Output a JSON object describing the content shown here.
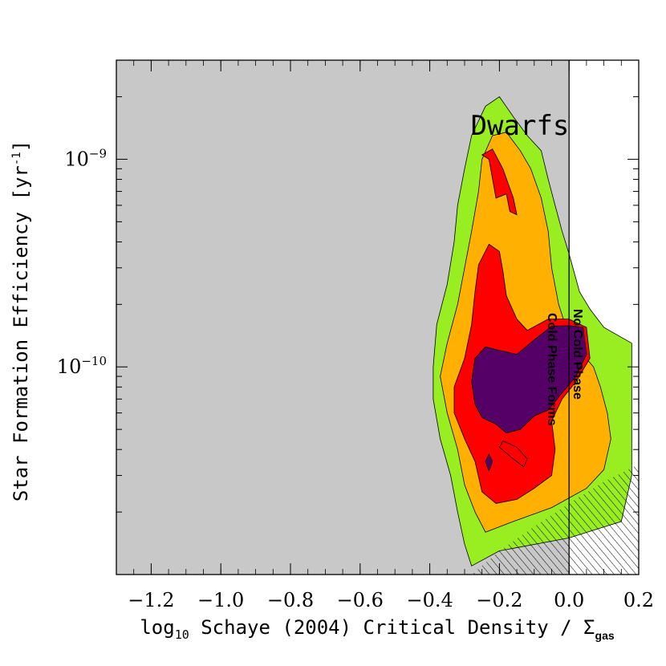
{
  "chart_data": {
    "type": "contour",
    "xlabel_parts": {
      "pre": "log",
      "pre_sub": "10",
      "main": " Schaye (2004) Critical Density / Σ",
      "post_sub": "gas"
    },
    "ylabel_parts": {
      "main": "Star Formation Efficiency [yr",
      "sup": "-1",
      "post": "]"
    },
    "xlim": [
      -1.3,
      0.2
    ],
    "ylim": [
      1e-11,
      3e-09
    ],
    "y_scale": "log",
    "x_ticks": [
      {
        "value": -1.2,
        "label": "−1.2"
      },
      {
        "value": -1.0,
        "label": "−1.0"
      },
      {
        "value": -0.8,
        "label": "−0.8"
      },
      {
        "value": -0.6,
        "label": "−0.6"
      },
      {
        "value": -0.4,
        "label": "−0.4"
      },
      {
        "value": -0.2,
        "label": "−0.2"
      },
      {
        "value": 0.0,
        "label": "0.0"
      },
      {
        "value": 0.2,
        "label": "0.2"
      }
    ],
    "y_ticks": [
      {
        "value": 1e-09,
        "base": "10",
        "exp": "−9"
      },
      {
        "value": 1e-10,
        "base": "10",
        "exp": "−10"
      }
    ],
    "threshold_x": 0.0,
    "shaded_region": {
      "x_max": 0.0,
      "color": "#c8c8c8"
    },
    "annotations": {
      "dwarfs": "Dwarfs",
      "no_cold": "No Cold Phase",
      "cold_forms": "Cold Phase Forms"
    },
    "contour_levels": [
      {
        "name": "level-1",
        "color": "#99ee22",
        "polygon": [
          [
            -0.28,
            1.1e-11
          ],
          [
            -0.2,
            1.3e-11
          ],
          [
            0.0,
            1.5e-11
          ],
          [
            0.15,
            1.8e-11
          ],
          [
            0.18,
            3e-11
          ],
          [
            0.18,
            1.3e-10
          ],
          [
            0.1,
            1.55e-10
          ],
          [
            0.06,
            1.9e-10
          ],
          [
            0.03,
            2.3e-10
          ],
          [
            0.0,
            3.5e-10
          ],
          [
            -0.02,
            4.5e-10
          ],
          [
            -0.04,
            6e-10
          ],
          [
            -0.06,
            8e-10
          ],
          [
            -0.08,
            1.1e-09
          ],
          [
            -0.12,
            1.3e-09
          ],
          [
            -0.16,
            1.6e-09
          ],
          [
            -0.2,
            2e-09
          ],
          [
            -0.24,
            1.8e-09
          ],
          [
            -0.28,
            1.3e-09
          ],
          [
            -0.3,
            9e-10
          ],
          [
            -0.32,
            6e-10
          ],
          [
            -0.33,
            4e-10
          ],
          [
            -0.35,
            2.5e-10
          ],
          [
            -0.38,
            1.6e-10
          ],
          [
            -0.39,
            1e-10
          ],
          [
            -0.39,
            7e-11
          ],
          [
            -0.37,
            4.5e-11
          ],
          [
            -0.34,
            3e-11
          ],
          [
            -0.32,
            2e-11
          ],
          [
            -0.3,
            1.4e-11
          ]
        ]
      },
      {
        "name": "level-2",
        "color": "#ffb000",
        "polygon": [
          [
            -0.24,
            1.6e-11
          ],
          [
            -0.16,
            1.8e-11
          ],
          [
            -0.05,
            2.1e-11
          ],
          [
            0.05,
            2.6e-11
          ],
          [
            0.1,
            3.2e-11
          ],
          [
            0.12,
            4.5e-11
          ],
          [
            0.11,
            6e-11
          ],
          [
            0.09,
            8e-11
          ],
          [
            0.07,
            1e-10
          ],
          [
            0.03,
            1.2e-10
          ],
          [
            0.0,
            1.4e-10
          ],
          [
            -0.03,
            2e-10
          ],
          [
            -0.05,
            3e-10
          ],
          [
            -0.06,
            4.5e-10
          ],
          [
            -0.08,
            6.5e-10
          ],
          [
            -0.11,
            9e-10
          ],
          [
            -0.14,
            1.1e-09
          ],
          [
            -0.18,
            1.35e-09
          ],
          [
            -0.22,
            1.3e-09
          ],
          [
            -0.25,
            1e-09
          ],
          [
            -0.26,
            7e-10
          ],
          [
            -0.28,
            4.5e-10
          ],
          [
            -0.3,
            3e-10
          ],
          [
            -0.32,
            2e-10
          ],
          [
            -0.35,
            1.3e-10
          ],
          [
            -0.37,
            9e-11
          ],
          [
            -0.35,
            6e-11
          ],
          [
            -0.32,
            4e-11
          ],
          [
            -0.3,
            2.7e-11
          ],
          [
            -0.27,
            2e-11
          ]
        ]
      },
      {
        "name": "level-3a",
        "color": "#ff0000",
        "polygon": [
          [
            -0.25,
            2.5e-11
          ],
          [
            -0.21,
            2.2e-11
          ],
          [
            -0.15,
            2.3e-11
          ],
          [
            -0.1,
            2.6e-11
          ],
          [
            -0.05,
            3e-11
          ],
          [
            -0.04,
            4e-11
          ],
          [
            -0.05,
            5.5e-11
          ],
          [
            -0.02,
            7e-11
          ],
          [
            0.02,
            8.5e-11
          ],
          [
            0.06,
            1.1e-10
          ],
          [
            0.05,
            1.55e-10
          ],
          [
            0.0,
            1.7e-10
          ],
          [
            -0.06,
            1.7e-10
          ],
          [
            -0.12,
            1.5e-10
          ],
          [
            -0.15,
            1.7e-10
          ],
          [
            -0.18,
            2.2e-10
          ],
          [
            -0.19,
            2.9e-10
          ],
          [
            -0.2,
            3.6e-10
          ],
          [
            -0.23,
            3.9e-10
          ],
          [
            -0.26,
            3.1e-10
          ],
          [
            -0.27,
            2.3e-10
          ],
          [
            -0.28,
            1.6e-10
          ],
          [
            -0.3,
            1.1e-10
          ],
          [
            -0.33,
            8e-11
          ],
          [
            -0.33,
            6e-11
          ],
          [
            -0.3,
            4.5e-11
          ],
          [
            -0.27,
            3.5e-11
          ]
        ]
      },
      {
        "name": "level-3b",
        "color": "#ff0000",
        "polygon": [
          [
            -0.23,
            1e-09
          ],
          [
            -0.21,
            6.5e-10
          ],
          [
            -0.18,
            6.8e-10
          ],
          [
            -0.17,
            5.6e-10
          ],
          [
            -0.15,
            5.4e-10
          ],
          [
            -0.16,
            6.5e-10
          ],
          [
            -0.19,
            9e-10
          ],
          [
            -0.22,
            1.12e-09
          ],
          [
            -0.25,
            1.05e-09
          ]
        ]
      },
      {
        "name": "level-4a",
        "color": "#550066",
        "polygon": [
          [
            -0.21,
            5.3e-11
          ],
          [
            -0.18,
            4.8e-11
          ],
          [
            -0.14,
            5e-11
          ],
          [
            -0.1,
            5.8e-11
          ],
          [
            -0.06,
            6.2e-11
          ],
          [
            -0.02,
            7.5e-11
          ],
          [
            0.02,
            9e-11
          ],
          [
            0.05,
            1.15e-10
          ],
          [
            0.04,
            1.55e-10
          ],
          [
            0.0,
            1.58e-10
          ],
          [
            -0.05,
            1.57e-10
          ],
          [
            -0.1,
            1.35e-10
          ],
          [
            -0.15,
            1.15e-10
          ],
          [
            -0.2,
            1.2e-10
          ],
          [
            -0.24,
            1.25e-10
          ],
          [
            -0.27,
            1.1e-10
          ],
          [
            -0.28,
            8.5e-11
          ],
          [
            -0.27,
            6.6e-11
          ],
          [
            -0.25,
            5.7e-11
          ]
        ]
      },
      {
        "name": "level-4b",
        "color": "#550066",
        "polygon": [
          [
            -0.23,
            3.15e-11
          ],
          [
            -0.22,
            3.5e-11
          ],
          [
            -0.23,
            3.8e-11
          ],
          [
            -0.24,
            3.5e-11
          ]
        ]
      }
    ],
    "inner_red_patch": {
      "color": "#ff0000",
      "polygon": [
        [
          -0.2,
          4.1e-11
        ],
        [
          -0.16,
          3.6e-11
        ],
        [
          -0.13,
          3.3e-11
        ],
        [
          -0.12,
          3.6e-11
        ],
        [
          -0.15,
          4.1e-11
        ],
        [
          -0.19,
          4.4e-11
        ]
      ]
    },
    "hatched_region": {
      "polygon": [
        [
          -0.28,
          1e-11
        ],
        [
          0.2,
          1e-11
        ],
        [
          0.2,
          3.4e-11
        ],
        [
          0.1,
          2.8e-11
        ],
        [
          0.0,
          2.2e-11
        ],
        [
          -0.1,
          1.7e-11
        ],
        [
          -0.2,
          1.3e-11
        ]
      ]
    }
  }
}
